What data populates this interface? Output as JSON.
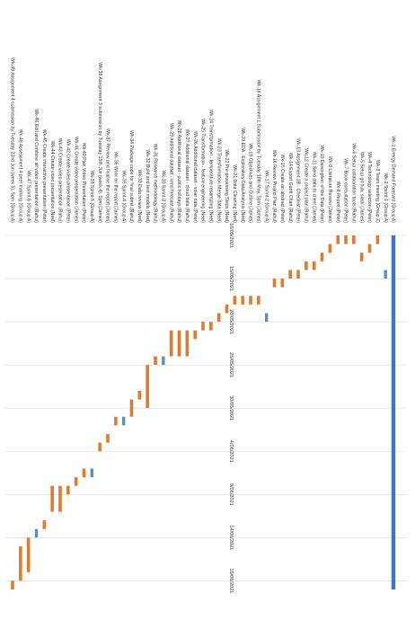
{
  "chart_data": {
    "type": "gantt",
    "orientation": "rotated-90-clockwise",
    "title": "",
    "xlabel": "",
    "ylabel": "",
    "date_ticks": [
      "10/05/2021",
      "15/05/2021",
      "20/05/2021",
      "25/05/2021",
      "30/05/2021",
      "4/06/2021",
      "9/06/2021",
      "14/06/2021",
      "19/06/2021"
    ],
    "date_range": [
      "10/05/2021",
      "20/06/2021"
    ],
    "grid": true,
    "colors": {
      "task": "#E07B2E",
      "milestone": "#5B8FC0",
      "week": "#4472C4",
      "grid": "#D9D9D9",
      "text": "#333333"
    },
    "tasks": [
      {
        "label": "Wk-1  Energy Demand Forecast (Group A)",
        "start": "10/05/2021",
        "end": "20/06/2021",
        "kind": "week"
      },
      {
        "label": "Wk-2  Sprint-1 (Group A)",
        "start": "14/05/2021",
        "end": "15/05/2021",
        "kind": "milestone"
      },
      {
        "label": "Wk-3  Team meeting (Group Z)",
        "start": "10/05/2021",
        "end": "11/05/2021",
        "kind": "task"
      },
      {
        "label": "Wk-4  Technology selection (Peter)",
        "start": "11/05/2021",
        "end": "12/05/2021",
        "kind": "task"
      },
      {
        "label": "Wk-5  Setup git hub, slack (James)",
        "start": "12/05/2021",
        "end": "13/05/2021",
        "kind": "task"
      },
      {
        "label": "Wk-6  Setup collaboration tools (Rahul)",
        "start": "10/05/2021",
        "end": "11/05/2021",
        "kind": "task"
      },
      {
        "label": "Wk-7  Book consultation (Peter)",
        "start": "10/05/2021",
        "end": "11/05/2021",
        "kind": "task"
      },
      {
        "label": "Wk-8  Report (Peter)",
        "start": "10/05/2021",
        "end": "11/05/2021",
        "kind": "task"
      },
      {
        "label": "Wk-9  Literature Review (James)",
        "start": "11/05/2021",
        "end": "12/05/2021",
        "kind": "task"
      },
      {
        "label": "Wk-10  Description of the Data (Peter)",
        "start": "12/05/2021",
        "end": "13/05/2021",
        "kind": "task"
      },
      {
        "label": "Wk-11  Send data to client (James)",
        "start": "13/05/2021",
        "end": "14/05/2021",
        "kind": "task"
      },
      {
        "label": "Wk-12  Create a project plan (Rahul)",
        "start": "13/05/2021",
        "end": "14/05/2021",
        "kind": "task"
      },
      {
        "label": "Wk-13  Assignment 1B - Checklist (Peter)",
        "start": "14/05/2021",
        "end": "15/05/2021",
        "kind": "task"
      },
      {
        "label": "Wk-14  Export Gantt Chart (Rahul)",
        "start": "14/05/2021",
        "end": "15/05/2021",
        "kind": "task"
      },
      {
        "label": "Wk-15  Create an abstract (Peter)",
        "start": "15/05/2021",
        "end": "16/05/2021",
        "kind": "task"
      },
      {
        "label": "Wk-16  Review Project Plan (Rahul)",
        "start": "15/05/2021",
        "end": "16/05/2021",
        "kind": "task"
      },
      {
        "label": "Wk-17  Sprint-2 (Group A)",
        "start": "19/05/2021",
        "end": "20/05/2021",
        "kind": "milestone"
      },
      {
        "label": "Wk-18  Assignment 1 Submission by Tuesday 18th May, 5pm (James)",
        "start": "17/05/2021",
        "end": "18/05/2021",
        "kind": "task"
      },
      {
        "label": "Wk-19  Objectives and Outline (James)",
        "start": "17/05/2021",
        "end": "18/05/2021",
        "kind": "task"
      },
      {
        "label": "Wk-20  EDA : Exploratory Data Analysis (Neel)",
        "start": "17/05/2021",
        "end": "18/05/2021",
        "kind": "task"
      },
      {
        "label": "Wk-21  Data Cleaning (Neel)",
        "start": "17/05/2021",
        "end": "18/05/2021",
        "kind": "task"
      },
      {
        "label": "Wk-22  Pre-processing Steps (Neel)",
        "start": "18/05/2021",
        "end": "19/05/2021",
        "kind": "task"
      },
      {
        "label": "Wk-23  Transformation Merge data (Neel)",
        "start": "19/05/2021",
        "end": "20/05/2021",
        "kind": "task"
      },
      {
        "label": "Wk-24  Transformation - temperature resampling (Neel)",
        "start": "20/05/2021",
        "end": "21/05/2021",
        "kind": "task"
      },
      {
        "label": "Wk-25  Transformation - feature engineering (Neel)",
        "start": "20/05/2021",
        "end": "21/05/2021",
        "kind": "task"
      },
      {
        "label": "Wk-26  Additional dataset - solar data (Peter)",
        "start": "21/05/2021",
        "end": "22/05/2021",
        "kind": "task"
      },
      {
        "label": "Wk-27  Additional dataset - cloud data (Rahul)",
        "start": "21/05/2021",
        "end": "24/05/2021",
        "kind": "task"
      },
      {
        "label": "Wk-28  Additional dataset - public holidays (Rahul)",
        "start": "21/05/2021",
        "end": "24/05/2021",
        "kind": "task"
      },
      {
        "label": "Wk-29  Additional dataset - wind forecast (Rahul)",
        "start": "21/05/2021",
        "end": "24/05/2021",
        "kind": "task"
      },
      {
        "label": "Wk-30  Sprint-3 (Group A)",
        "start": "24/05/2021",
        "end": "25/05/2021",
        "kind": "milestone"
      },
      {
        "label": "Wk-31  Research methodology (Rahul)",
        "start": "24/05/2021",
        "end": "25/05/2021",
        "kind": "task"
      },
      {
        "label": "Wk-32  Build and test models (Neel)",
        "start": "25/05/2021",
        "end": "30/05/2021",
        "kind": "task"
      },
      {
        "label": "Wk-33  Data review (Neel)",
        "start": "28/05/2021",
        "end": "29/05/2021",
        "kind": "task"
      },
      {
        "label": "Wk-34  Package code for final submit (Rahul)",
        "start": "29/05/2021",
        "end": "31/05/2021",
        "kind": "task"
      },
      {
        "label": "Wk-35  Sprint-4 (Group A)",
        "start": "31/05/2021",
        "end": "1/06/2021",
        "kind": "milestone"
      },
      {
        "label": "Wk-36  Work on the report (James)",
        "start": "31/05/2021",
        "end": "1/06/2021",
        "kind": "task"
      },
      {
        "label": "Wk-37  Review and finalise the report (James)",
        "start": "2/06/2021",
        "end": "3/06/2021",
        "kind": "task"
      },
      {
        "label": "Wk-38  Assignment 3 submission by Tuesday 15th Jun (week 4), 5pm (James)",
        "start": "3/06/2021",
        "end": "4/06/2021",
        "kind": "task"
      },
      {
        "label": "Wk-39  Sprint-5 (Group A)",
        "start": "6/06/2021",
        "end": "7/06/2021",
        "kind": "milestone"
      },
      {
        "label": "Wk-40  Plan Video Presentation (Peter)",
        "start": "6/06/2021",
        "end": "7/06/2021",
        "kind": "task"
      },
      {
        "label": "Wk-41  Create video presentation (James)",
        "start": "7/06/2021",
        "end": "8/06/2021",
        "kind": "task"
      },
      {
        "label": "Wk-42  Create video presentation (Peter)",
        "start": "8/06/2021",
        "end": "9/06/2021",
        "kind": "task"
      },
      {
        "label": "Wk-43  Create video presentation (Rahul)",
        "start": "8/06/2021",
        "end": "11/06/2021",
        "kind": "task"
      },
      {
        "label": "Wk-44  Create video presentation (Neel)",
        "start": "8/06/2021",
        "end": "11/06/2021",
        "kind": "task"
      },
      {
        "label": "Wk-45  Create interactive presentation (Peter)",
        "start": "12/06/2021",
        "end": "13/06/2021",
        "kind": "task"
      },
      {
        "label": "Wk-46  Edit and Combine all video presentation (Rahul)",
        "start": "13/06/2021",
        "end": "14/06/2021",
        "kind": "milestone"
      },
      {
        "label": "Wk-47  Sprint-6 (Group A)",
        "start": "14/06/2021",
        "end": "18/06/2021",
        "kind": "task"
      },
      {
        "label": "Wk-48  Assessment 4 peer marking (Group A)",
        "start": "15/06/2021",
        "end": "19/06/2021",
        "kind": "task"
      },
      {
        "label": "Wk-49  Assignment 4 submission by Tuesday 22nd Jun (week 5), 5pm (Group A)",
        "start": "19/06/2021",
        "end": "20/06/2021",
        "kind": "task"
      }
    ]
  }
}
